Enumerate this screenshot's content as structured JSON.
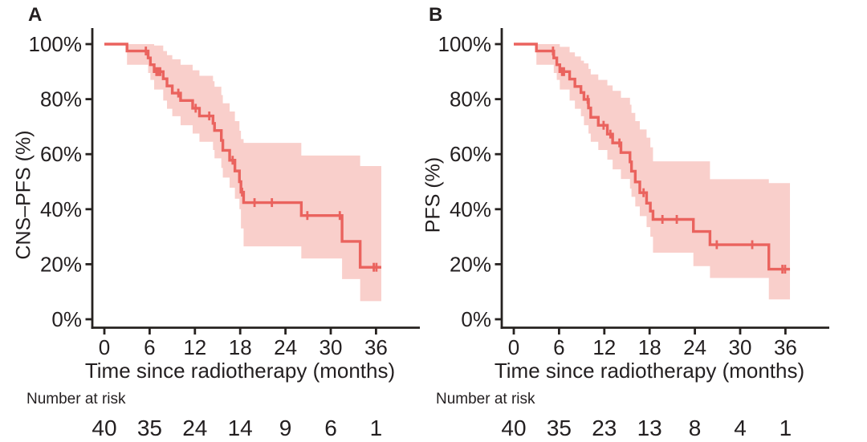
{
  "figure": {
    "colors": {
      "curve": "#ea635e",
      "confidence_band": "#f9cfcb",
      "axis": "#262220",
      "text": "#231f20",
      "background": "#ffffff"
    }
  },
  "chart_data": [
    {
      "type": "line",
      "subtype": "kaplan-meier-step-curve-with-confidence-band",
      "title": "A",
      "ylabel": "CNS–PFS (%)",
      "xlabel": "Time since radiotherapy (months)",
      "x_ticks": [
        0,
        6,
        12,
        18,
        24,
        30,
        36
      ],
      "y_ticks": [
        {
          "value": 0,
          "label": "0%"
        },
        {
          "value": 20,
          "label": "20%"
        },
        {
          "value": 40,
          "label": "40%"
        },
        {
          "value": 60,
          "label": "60%"
        },
        {
          "value": 80,
          "label": "80%"
        },
        {
          "value": 100,
          "label": "100%"
        }
      ],
      "xlim": [
        -1.7,
        41.8
      ],
      "ylim": [
        0,
        100
      ],
      "curve_end_time": 36.7,
      "survival_steps": [
        [
          0,
          100
        ],
        [
          3.0,
          97.5
        ],
        [
          5.8,
          95.0
        ],
        [
          6.1,
          92.5
        ],
        [
          6.6,
          90.0
        ],
        [
          7.8,
          87.4
        ],
        [
          8.3,
          84.8
        ],
        [
          9.0,
          82.2
        ],
        [
          10.1,
          79.5
        ],
        [
          11.7,
          76.7
        ],
        [
          12.6,
          73.9
        ],
        [
          14.4,
          71.2
        ],
        [
          14.6,
          68.6
        ],
        [
          15.5,
          65.0
        ],
        [
          15.7,
          61.4
        ],
        [
          16.6,
          57.8
        ],
        [
          17.3,
          53.9
        ],
        [
          17.9,
          50.0
        ],
        [
          18.1,
          46.2
        ],
        [
          18.45,
          42.4
        ],
        [
          26.1,
          37.7
        ],
        [
          31.5,
          28.3
        ],
        [
          33.9,
          18.9
        ]
      ],
      "censor_marks": [
        [
          5.5,
          97.5
        ],
        [
          6.9,
          90.0
        ],
        [
          7.15,
          90.0
        ],
        [
          7.4,
          90.0
        ],
        [
          9.8,
          82.2
        ],
        [
          12.1,
          76.7
        ],
        [
          13.9,
          73.9
        ],
        [
          17.0,
          57.8
        ],
        [
          18.25,
          46.2
        ],
        [
          19.9,
          42.4
        ],
        [
          22.2,
          42.4
        ],
        [
          26.9,
          37.7
        ],
        [
          31.2,
          37.7
        ],
        [
          35.7,
          18.9
        ],
        [
          36.05,
          18.9
        ]
      ],
      "confidence_band": [
        [
          3.0,
          100,
          92.5
        ],
        [
          5.8,
          100,
          89.5
        ],
        [
          6.1,
          100,
          87.0
        ],
        [
          6.6,
          99.5,
          83.5
        ],
        [
          7.8,
          97.5,
          79.5
        ],
        [
          8.3,
          96.0,
          76.5
        ],
        [
          9.0,
          94.5,
          73.8
        ],
        [
          10.1,
          92.5,
          70.5
        ],
        [
          11.7,
          90.5,
          67.5
        ],
        [
          12.6,
          88.5,
          64.5
        ],
        [
          14.4,
          86.5,
          61.5
        ],
        [
          14.6,
          84.5,
          58.5
        ],
        [
          15.5,
          81.5,
          55.0
        ],
        [
          15.7,
          78.5,
          51.5
        ],
        [
          16.6,
          75.5,
          47.8
        ],
        [
          17.3,
          72.0,
          43.8
        ],
        [
          17.9,
          68.5,
          40.0
        ],
        [
          18.1,
          65.5,
          33.0
        ],
        [
          18.45,
          64.1,
          26.5
        ],
        [
          26.1,
          59.5,
          22.1
        ],
        [
          31.5,
          59.5,
          14.6
        ],
        [
          33.9,
          55.7,
          6.6
        ]
      ],
      "risk_table": {
        "label": "Number at risk",
        "times": [
          0,
          6,
          12,
          18,
          24,
          30,
          36
        ],
        "values": [
          40,
          35,
          24,
          14,
          9,
          6,
          1
        ]
      }
    },
    {
      "type": "line",
      "subtype": "kaplan-meier-step-curve-with-confidence-band",
      "title": "B",
      "ylabel": "PFS (%)",
      "xlabel": "Time since radiotherapy (months)",
      "x_ticks": [
        0,
        6,
        12,
        18,
        24,
        30,
        36
      ],
      "y_ticks": [
        {
          "value": 0,
          "label": "0%"
        },
        {
          "value": 20,
          "label": "20%"
        },
        {
          "value": 40,
          "label": "40%"
        },
        {
          "value": 60,
          "label": "60%"
        },
        {
          "value": 80,
          "label": "80%"
        },
        {
          "value": 100,
          "label": "100%"
        }
      ],
      "xlim": [
        -1.7,
        41.8
      ],
      "ylim": [
        0,
        100
      ],
      "curve_end_time": 36.6,
      "survival_steps": [
        [
          0,
          100
        ],
        [
          3.0,
          97.5
        ],
        [
          5.3,
          95.0
        ],
        [
          5.7,
          92.5
        ],
        [
          6.1,
          90.0
        ],
        [
          7.4,
          87.3
        ],
        [
          8.1,
          84.6
        ],
        [
          8.9,
          82.4
        ],
        [
          9.3,
          79.9
        ],
        [
          9.9,
          76.8
        ],
        [
          10.2,
          73.4
        ],
        [
          11.2,
          70.5
        ],
        [
          12.4,
          67.3
        ],
        [
          13.1,
          64.1
        ],
        [
          14.2,
          60.6
        ],
        [
          15.4,
          57.2
        ],
        [
          15.6,
          53.8
        ],
        [
          16.1,
          49.9
        ],
        [
          16.7,
          46.0
        ],
        [
          17.6,
          42.2
        ],
        [
          18.1,
          39.3
        ],
        [
          18.45,
          36.3
        ],
        [
          23.8,
          31.9
        ],
        [
          26.0,
          27.1
        ],
        [
          33.8,
          18.2
        ]
      ],
      "censor_marks": [
        [
          5.2,
          97.5
        ],
        [
          6.4,
          90.0
        ],
        [
          6.65,
          90.0
        ],
        [
          9.8,
          79.9
        ],
        [
          11.9,
          70.5
        ],
        [
          12.8,
          67.3
        ],
        [
          14.0,
          64.1
        ],
        [
          17.2,
          46.0
        ],
        [
          19.7,
          36.3
        ],
        [
          21.6,
          36.3
        ],
        [
          26.9,
          27.1
        ],
        [
          31.6,
          27.1
        ],
        [
          35.6,
          18.2
        ],
        [
          35.95,
          18.2
        ]
      ],
      "confidence_band": [
        [
          3.0,
          100,
          92.5
        ],
        [
          5.3,
          100,
          89.5
        ],
        [
          5.7,
          100,
          87.0
        ],
        [
          6.1,
          99.0,
          83.5
        ],
        [
          7.4,
          97.0,
          79.5
        ],
        [
          8.1,
          95.5,
          76.5
        ],
        [
          8.9,
          94.0,
          73.8
        ],
        [
          9.3,
          93.0,
          70.5
        ],
        [
          9.9,
          91.0,
          67.5
        ],
        [
          10.2,
          89.0,
          64.5
        ],
        [
          11.2,
          87.0,
          61.5
        ],
        [
          12.4,
          85.0,
          58.0
        ],
        [
          13.1,
          83.0,
          54.5
        ],
        [
          14.2,
          80.5,
          51.0
        ],
        [
          15.4,
          78.0,
          47.5
        ],
        [
          15.6,
          75.0,
          44.5
        ],
        [
          16.1,
          72.0,
          41.0
        ],
        [
          16.7,
          69.0,
          37.5
        ],
        [
          17.6,
          66.0,
          33.5
        ],
        [
          18.1,
          62.5,
          30.0
        ],
        [
          18.45,
          57.4,
          24.2
        ],
        [
          23.8,
          57.4,
          19.3
        ],
        [
          26.0,
          50.9,
          15.0
        ],
        [
          33.8,
          49.5,
          7.2
        ]
      ],
      "risk_table": {
        "label": "Number at risk",
        "times": [
          0,
          6,
          12,
          18,
          24,
          30,
          36
        ],
        "values": [
          40,
          35,
          23,
          13,
          8,
          4,
          1
        ]
      }
    }
  ]
}
